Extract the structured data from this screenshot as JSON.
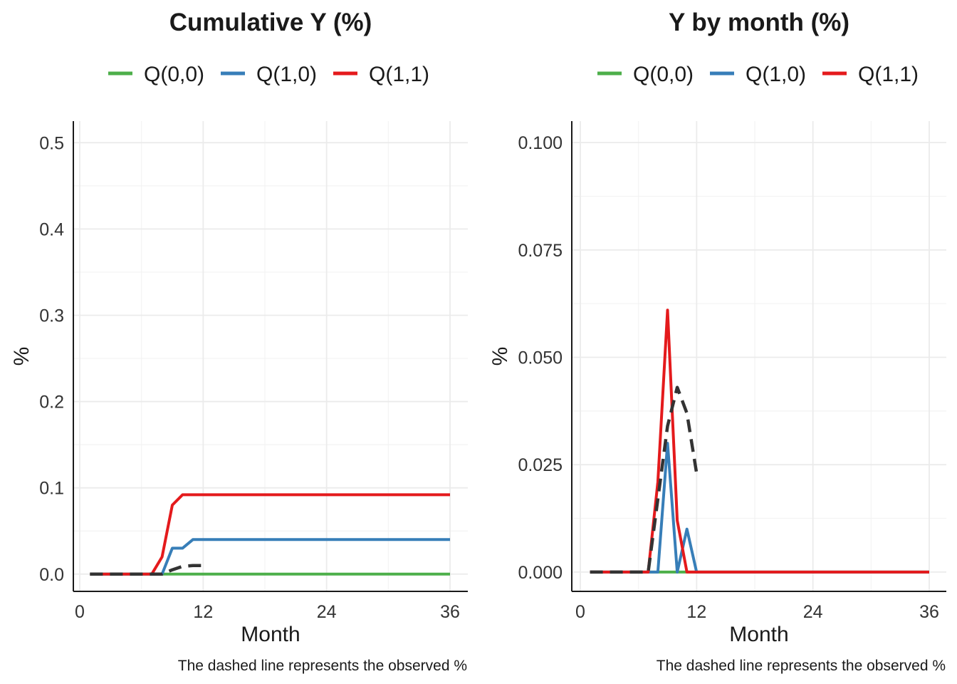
{
  "colors": {
    "Q00": "#4daf4a",
    "Q10": "#377eb8",
    "Q11": "#e41a1c",
    "observed": "#333333"
  },
  "chart_data": [
    {
      "type": "line",
      "title": "Cumulative Y (%)",
      "xlabel": "Month",
      "ylabel": "%",
      "caption": "The dashed line represents the observed %",
      "xlim": [
        0,
        37
      ],
      "ylim": [
        -0.02,
        0.525
      ],
      "xticks": [
        0,
        12,
        24,
        36
      ],
      "xtick_labels": [
        "0",
        "12",
        "24",
        "36"
      ],
      "yticks": [
        0,
        0.1,
        0.2,
        0.3,
        0.4,
        0.5
      ],
      "ytick_labels": [
        "0.0",
        "0.1",
        "0.2",
        "0.3",
        "0.4",
        "0.5"
      ],
      "grid": true,
      "legend_position": "top",
      "legend": [
        "Q(0,0)",
        "Q(1,0)",
        "Q(1,1)"
      ],
      "x": [
        1,
        2,
        3,
        4,
        5,
        6,
        7,
        8,
        9,
        10,
        11,
        12,
        13,
        14,
        15,
        16,
        17,
        18,
        19,
        20,
        21,
        22,
        23,
        24,
        25,
        26,
        27,
        28,
        29,
        30,
        31,
        32,
        33,
        34,
        35,
        36
      ],
      "series": [
        {
          "name": "Q(0,0)",
          "color": "Q00",
          "dashed": false,
          "values": [
            0,
            0,
            0,
            0,
            0,
            0,
            0,
            0,
            0,
            0,
            0,
            0,
            0,
            0,
            0,
            0,
            0,
            0,
            0,
            0,
            0,
            0,
            0,
            0,
            0,
            0,
            0,
            0,
            0,
            0,
            0,
            0,
            0,
            0,
            0,
            0
          ]
        },
        {
          "name": "Q(1,0)",
          "color": "Q10",
          "dashed": false,
          "values": [
            0,
            0,
            0,
            0,
            0,
            0,
            0,
            0,
            0.03,
            0.03,
            0.04,
            0.04,
            0.04,
            0.04,
            0.04,
            0.04,
            0.04,
            0.04,
            0.04,
            0.04,
            0.04,
            0.04,
            0.04,
            0.04,
            0.04,
            0.04,
            0.04,
            0.04,
            0.04,
            0.04,
            0.04,
            0.04,
            0.04,
            0.04,
            0.04,
            0.04
          ]
        },
        {
          "name": "Q(1,1)",
          "color": "Q11",
          "dashed": false,
          "values": [
            0,
            0,
            0,
            0,
            0,
            0,
            0,
            0.02,
            0.08,
            0.092,
            0.092,
            0.092,
            0.092,
            0.092,
            0.092,
            0.092,
            0.092,
            0.092,
            0.092,
            0.092,
            0.092,
            0.092,
            0.092,
            0.092,
            0.092,
            0.092,
            0.092,
            0.092,
            0.092,
            0.092,
            0.092,
            0.092,
            0.092,
            0.092,
            0.092,
            0.092
          ]
        },
        {
          "name": "",
          "color": "observed",
          "dashed": true,
          "x": [
            1,
            2,
            3,
            4,
            5,
            6,
            7,
            8,
            9,
            10,
            11,
            12
          ],
          "values": [
            0,
            0,
            0,
            0,
            0,
            0,
            0,
            0,
            0.005,
            0.009,
            0.01,
            0.01
          ]
        }
      ]
    },
    {
      "type": "line",
      "title": "Y by month (%)",
      "xlabel": "Month",
      "ylabel": "%",
      "caption": "The dashed line represents the observed %",
      "xlim": [
        0,
        37
      ],
      "ylim": [
        -0.0045,
        0.105
      ],
      "xticks": [
        0,
        12,
        24,
        36
      ],
      "xtick_labels": [
        "0",
        "12",
        "24",
        "36"
      ],
      "yticks": [
        0,
        0.025,
        0.05,
        0.075,
        0.1
      ],
      "ytick_labels": [
        "0.000",
        "0.025",
        "0.050",
        "0.075",
        "0.100"
      ],
      "grid": true,
      "legend_position": "top",
      "legend": [
        "Q(0,0)",
        "Q(1,0)",
        "Q(1,1)"
      ],
      "x": [
        1,
        2,
        3,
        4,
        5,
        6,
        7,
        8,
        9,
        10,
        11,
        12,
        13,
        14,
        15,
        16,
        17,
        18,
        19,
        20,
        21,
        22,
        23,
        24,
        25,
        26,
        27,
        28,
        29,
        30,
        31,
        32,
        33,
        34,
        35,
        36
      ],
      "series": [
        {
          "name": "Q(0,0)",
          "color": "Q00",
          "dashed": false,
          "values": [
            0,
            0,
            0,
            0,
            0,
            0,
            0,
            0,
            0,
            0,
            0,
            0,
            0,
            0,
            0,
            0,
            0,
            0,
            0,
            0,
            0,
            0,
            0,
            0,
            0,
            0,
            0,
            0,
            0,
            0,
            0,
            0,
            0,
            0,
            0,
            0
          ]
        },
        {
          "name": "Q(1,0)",
          "color": "Q10",
          "dashed": false,
          "values": [
            0,
            0,
            0,
            0,
            0,
            0,
            0,
            0,
            0.03,
            0,
            0.01,
            0,
            0,
            0,
            0,
            0,
            0,
            0,
            0,
            0,
            0,
            0,
            0,
            0,
            0,
            0,
            0,
            0,
            0,
            0,
            0,
            0,
            0,
            0,
            0,
            0
          ]
        },
        {
          "name": "Q(1,1)",
          "color": "Q11",
          "dashed": false,
          "values": [
            0,
            0,
            0,
            0,
            0,
            0,
            0,
            0.021,
            0.061,
            0.012,
            0,
            0,
            0,
            0,
            0,
            0,
            0,
            0,
            0,
            0,
            0,
            0,
            0,
            0,
            0,
            0,
            0,
            0,
            0,
            0,
            0,
            0,
            0,
            0,
            0,
            0
          ]
        },
        {
          "name": "",
          "color": "observed",
          "dashed": true,
          "x": [
            1,
            2,
            3,
            4,
            5,
            6,
            7,
            8,
            9,
            10,
            11,
            12
          ],
          "values": [
            0,
            0,
            0,
            0,
            0,
            0,
            0,
            0.017,
            0.034,
            0.043,
            0.037,
            0.023
          ]
        }
      ]
    }
  ]
}
